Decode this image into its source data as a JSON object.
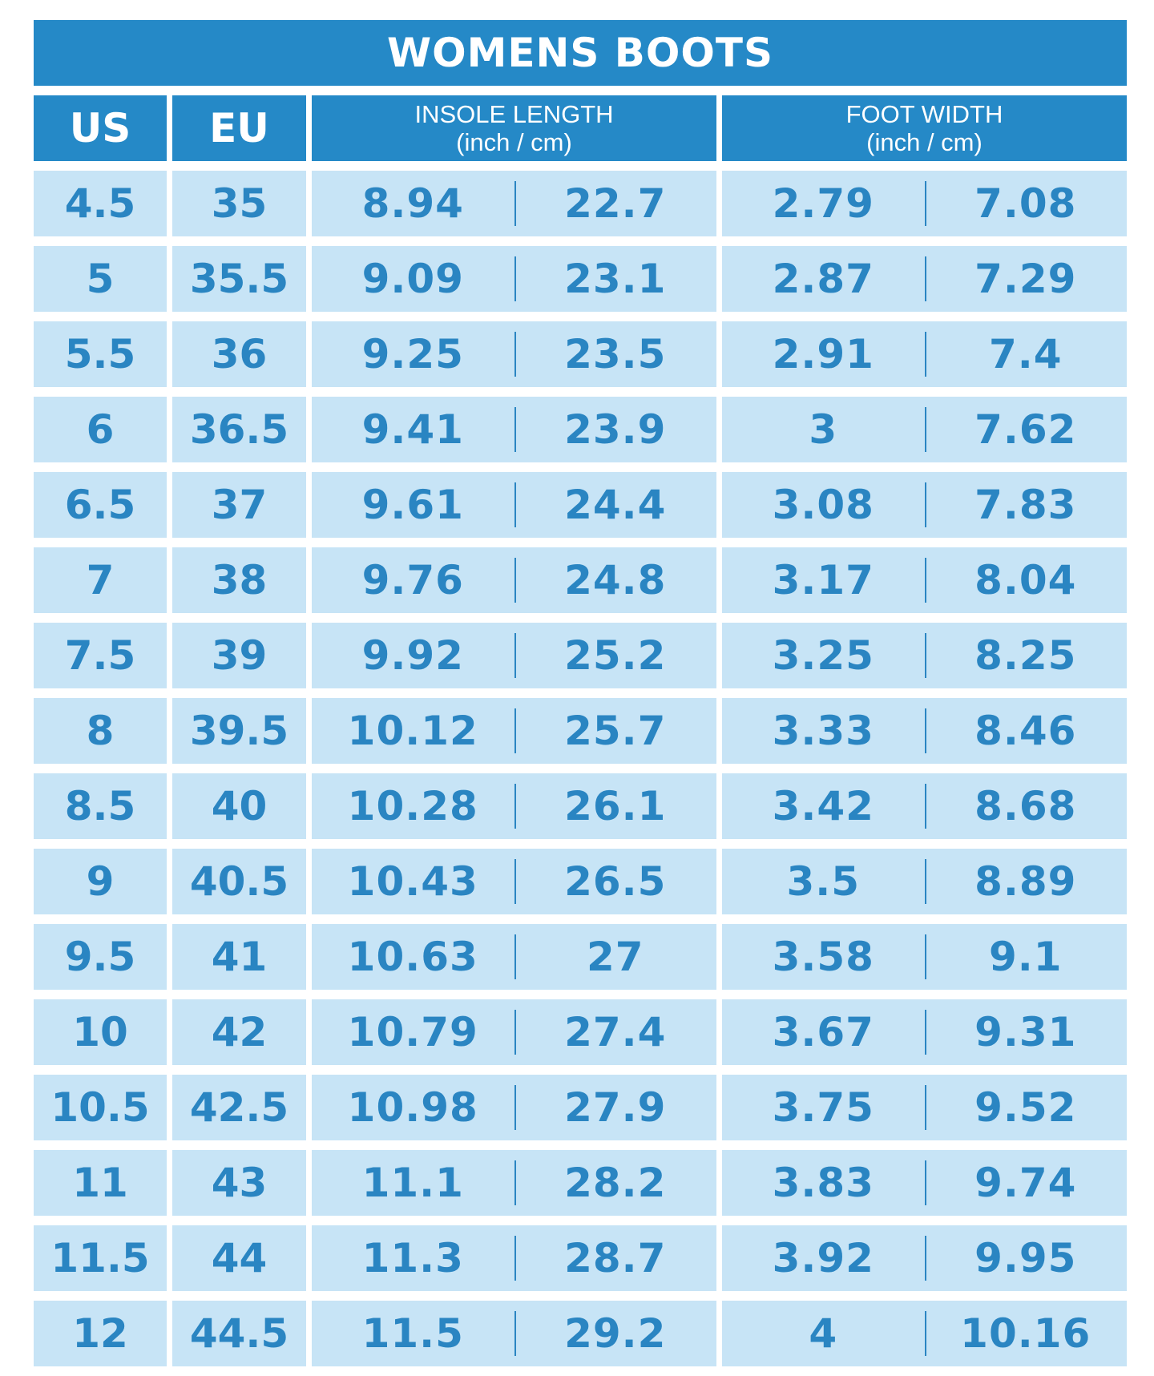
{
  "title": "WOMENS BOOTS",
  "headers": {
    "us": "US",
    "eu": "EU",
    "insole_title": "INSOLE LENGTH",
    "insole_unit": "(inch / cm)",
    "width_title": "FOOT WIDTH",
    "width_unit": "(inch / cm)"
  },
  "rows": [
    {
      "us": "4.5",
      "eu": "35",
      "insole_in": "8.94",
      "insole_cm": "22.7",
      "width_in": "2.79",
      "width_cm": "7.08"
    },
    {
      "us": "5",
      "eu": "35.5",
      "insole_in": "9.09",
      "insole_cm": "23.1",
      "width_in": "2.87",
      "width_cm": "7.29"
    },
    {
      "us": "5.5",
      "eu": "36",
      "insole_in": "9.25",
      "insole_cm": "23.5",
      "width_in": "2.91",
      "width_cm": "7.4"
    },
    {
      "us": "6",
      "eu": "36.5",
      "insole_in": "9.41",
      "insole_cm": "23.9",
      "width_in": "3",
      "width_cm": "7.62"
    },
    {
      "us": "6.5",
      "eu": "37",
      "insole_in": "9.61",
      "insole_cm": "24.4",
      "width_in": "3.08",
      "width_cm": "7.83"
    },
    {
      "us": "7",
      "eu": "38",
      "insole_in": "9.76",
      "insole_cm": "24.8",
      "width_in": "3.17",
      "width_cm": "8.04"
    },
    {
      "us": "7.5",
      "eu": "39",
      "insole_in": "9.92",
      "insole_cm": "25.2",
      "width_in": "3.25",
      "width_cm": "8.25"
    },
    {
      "us": "8",
      "eu": "39.5",
      "insole_in": "10.12",
      "insole_cm": "25.7",
      "width_in": "3.33",
      "width_cm": "8.46"
    },
    {
      "us": "8.5",
      "eu": "40",
      "insole_in": "10.28",
      "insole_cm": "26.1",
      "width_in": "3.42",
      "width_cm": "8.68"
    },
    {
      "us": "9",
      "eu": "40.5",
      "insole_in": "10.43",
      "insole_cm": "26.5",
      "width_in": "3.5",
      "width_cm": "8.89"
    },
    {
      "us": "9.5",
      "eu": "41",
      "insole_in": "10.63",
      "insole_cm": "27",
      "width_in": "3.58",
      "width_cm": "9.1"
    },
    {
      "us": "10",
      "eu": "42",
      "insole_in": "10.79",
      "insole_cm": "27.4",
      "width_in": "3.67",
      "width_cm": "9.31"
    },
    {
      "us": "10.5",
      "eu": "42.5",
      "insole_in": "10.98",
      "insole_cm": "27.9",
      "width_in": "3.75",
      "width_cm": "9.52"
    },
    {
      "us": "11",
      "eu": "43",
      "insole_in": "11.1",
      "insole_cm": "28.2",
      "width_in": "3.83",
      "width_cm": "9.74"
    },
    {
      "us": "11.5",
      "eu": "44",
      "insole_in": "11.3",
      "insole_cm": "28.7",
      "width_in": "3.92",
      "width_cm": "9.95"
    },
    {
      "us": "12",
      "eu": "44.5",
      "insole_in": "11.5",
      "insole_cm": "29.2",
      "width_in": "4",
      "width_cm": "10.16"
    }
  ],
  "colors": {
    "header_bg": "#2589c7",
    "row_bg": "#c7e4f6",
    "value_text": "#2a85c2"
  }
}
